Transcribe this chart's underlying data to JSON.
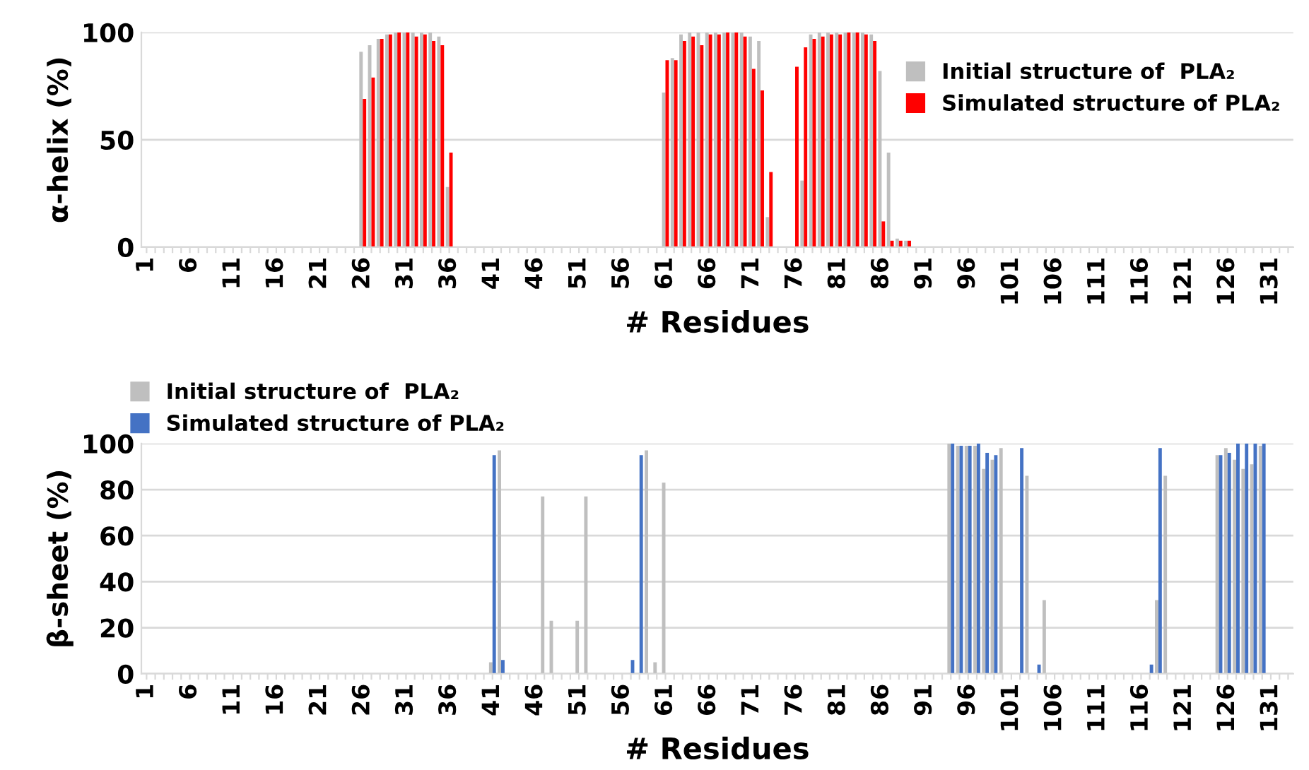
{
  "chart_data": [
    {
      "type": "bar",
      "xlabel": "# Residues",
      "ylabel": "α-helix (%)",
      "ylim": [
        0,
        100
      ],
      "yticks": [
        0,
        50,
        100
      ],
      "grid": "y",
      "legend": "top right",
      "categories": [
        "1",
        null,
        null,
        null,
        null,
        "6",
        null,
        null,
        null,
        null,
        "11",
        null,
        null,
        null,
        null,
        "16",
        null,
        null,
        null,
        null,
        "21",
        null,
        null,
        null,
        null,
        "26",
        null,
        null,
        null,
        null,
        "31",
        null,
        null,
        null,
        null,
        "36",
        null,
        null,
        null,
        null,
        "41",
        null,
        null,
        null,
        null,
        "46",
        null,
        null,
        null,
        null,
        "51",
        null,
        null,
        null,
        null,
        "56",
        null,
        null,
        null,
        null,
        "61",
        null,
        null,
        null,
        null,
        "66",
        null,
        null,
        null,
        null,
        "71",
        null,
        null,
        null,
        null,
        "76",
        null,
        null,
        null,
        null,
        "81",
        null,
        null,
        null,
        null,
        "86",
        null,
        null,
        null,
        null,
        "91",
        null,
        null,
        null,
        null,
        "96",
        null,
        null,
        null,
        null,
        "101",
        null,
        null,
        null,
        null,
        "106",
        null,
        null,
        null,
        null,
        "111",
        null,
        null,
        null,
        null,
        "116",
        null,
        null,
        null,
        null,
        "121",
        null,
        null,
        null,
        null,
        "126",
        null,
        null,
        null,
        null,
        "131",
        null,
        null
      ],
      "series": [
        {
          "name": "Initial structure of  PLA₂",
          "color": "#bfbfbf",
          "values": [
            0,
            0,
            0,
            0,
            0,
            0,
            0,
            0,
            0,
            0,
            0,
            0,
            0,
            0,
            0,
            0,
            0,
            0,
            0,
            0,
            0,
            0,
            0,
            0,
            0,
            91,
            94,
            97,
            99,
            100,
            100,
            100,
            100,
            100,
            98,
            28,
            0,
            0,
            0,
            0,
            0,
            0,
            0,
            0,
            0,
            0,
            0,
            0,
            0,
            0,
            0,
            0,
            0,
            0,
            0,
            0,
            0,
            0,
            0,
            0,
            72,
            88,
            99,
            100,
            100,
            100,
            100,
            100,
            100,
            100,
            98,
            96,
            14,
            0,
            0,
            0,
            31,
            99,
            100,
            100,
            100,
            100,
            100,
            100,
            99,
            82,
            44,
            4,
            3,
            0,
            0,
            0,
            0,
            0,
            0,
            0,
            0,
            0,
            0,
            0,
            0,
            0,
            0,
            0,
            0,
            0,
            0,
            0,
            0,
            0,
            0,
            0,
            0,
            0,
            0,
            0,
            0,
            0,
            0,
            0,
            0,
            0,
            0,
            0,
            0,
            0,
            0,
            0,
            0,
            0,
            0,
            0,
            0
          ]
        },
        {
          "name": "Simulated structure of PLA₂",
          "color": "#ff0000",
          "values": [
            0,
            0,
            0,
            0,
            0,
            0,
            0,
            0,
            0,
            0,
            0,
            0,
            0,
            0,
            0,
            0,
            0,
            0,
            0,
            0,
            0,
            0,
            0,
            0,
            0,
            69,
            79,
            97,
            99,
            100,
            100,
            98,
            99,
            96,
            94,
            44,
            0,
            0,
            0,
            0,
            0,
            0,
            0,
            0,
            0,
            0,
            0,
            0,
            0,
            0,
            0,
            0,
            0,
            0,
            0,
            0,
            0,
            0,
            0,
            0,
            87,
            87,
            96,
            98,
            94,
            99,
            99,
            100,
            100,
            98,
            83,
            73,
            35,
            0,
            0,
            84,
            93,
            97,
            98,
            99,
            99,
            100,
            100,
            99,
            96,
            12,
            3,
            3,
            3,
            0,
            0,
            0,
            0,
            0,
            0,
            0,
            0,
            0,
            0,
            0,
            0,
            0,
            0,
            0,
            0,
            0,
            0,
            0,
            0,
            0,
            0,
            0,
            0,
            0,
            0,
            0,
            0,
            0,
            0,
            0,
            0,
            0,
            0,
            0,
            0,
            0,
            0,
            0,
            0,
            0,
            0,
            0,
            0
          ]
        }
      ]
    },
    {
      "type": "bar",
      "xlabel": "# Residues",
      "ylabel": "β-sheet (%)",
      "ylim": [
        0,
        100
      ],
      "yticks": [
        0,
        20,
        40,
        60,
        80,
        100
      ],
      "grid": "y",
      "legend": "top left",
      "categories": [
        "1",
        null,
        null,
        null,
        null,
        "6",
        null,
        null,
        null,
        null,
        "11",
        null,
        null,
        null,
        null,
        "16",
        null,
        null,
        null,
        null,
        "21",
        null,
        null,
        null,
        null,
        "26",
        null,
        null,
        null,
        null,
        "31",
        null,
        null,
        null,
        null,
        "36",
        null,
        null,
        null,
        null,
        "41",
        null,
        null,
        null,
        null,
        "46",
        null,
        null,
        null,
        null,
        "51",
        null,
        null,
        null,
        null,
        "56",
        null,
        null,
        null,
        null,
        "61",
        null,
        null,
        null,
        null,
        "66",
        null,
        null,
        null,
        null,
        "71",
        null,
        null,
        null,
        null,
        "76",
        null,
        null,
        null,
        null,
        "81",
        null,
        null,
        null,
        null,
        "86",
        null,
        null,
        null,
        null,
        "91",
        null,
        null,
        null,
        null,
        "96",
        null,
        null,
        null,
        null,
        "101",
        null,
        null,
        null,
        null,
        "106",
        null,
        null,
        null,
        null,
        "111",
        null,
        null,
        null,
        null,
        "116",
        null,
        null,
        null,
        null,
        "121",
        null,
        null,
        null,
        null,
        "126",
        null,
        null,
        null,
        null,
        "131",
        null,
        null
      ],
      "series": [
        {
          "name": "Initial structure of  PLA₂",
          "color": "#bfbfbf",
          "values": [
            0,
            0,
            0,
            0,
            0,
            0,
            0,
            0,
            0,
            0,
            0,
            0,
            0,
            0,
            0,
            0,
            0,
            0,
            0,
            0,
            0,
            0,
            0,
            0,
            0,
            0,
            0,
            0,
            0,
            0,
            0,
            0,
            0,
            0,
            0,
            0,
            0,
            0,
            0,
            0,
            5,
            97,
            0,
            0,
            0,
            null,
            77,
            23,
            0,
            0,
            23,
            77,
            0,
            0,
            0,
            0,
            0,
            0,
            97,
            5,
            83,
            0,
            0,
            0,
            0,
            0,
            0,
            0,
            0,
            0,
            0,
            0,
            0,
            0,
            0,
            0,
            0,
            0,
            0,
            0,
            0,
            0,
            0,
            0,
            0,
            0,
            0,
            0,
            0,
            0,
            0,
            0,
            0,
            100,
            99,
            99,
            99,
            89,
            93,
            98,
            0,
            0,
            86,
            0,
            32,
            null,
            0,
            0,
            0,
            0,
            0,
            0,
            0,
            0,
            0,
            0,
            0,
            32,
            86,
            0,
            0,
            0,
            0,
            0,
            95,
            98,
            93,
            89,
            91,
            99,
            0,
            0,
            0
          ]
        },
        {
          "name": "Simulated structure of PLA₂",
          "color": "#4472c4",
          "values": [
            0,
            0,
            0,
            0,
            0,
            0,
            0,
            0,
            0,
            0,
            0,
            0,
            0,
            0,
            0,
            0,
            0,
            0,
            0,
            0,
            0,
            0,
            0,
            0,
            0,
            0,
            0,
            0,
            0,
            0,
            0,
            0,
            0,
            0,
            0,
            0,
            0,
            0,
            0,
            0,
            95,
            6,
            0,
            0,
            0,
            0,
            0,
            0,
            0,
            0,
            0,
            0,
            0,
            0,
            0,
            0,
            6,
            95,
            0,
            0,
            0,
            0,
            0,
            0,
            0,
            0,
            0,
            0,
            0,
            0,
            0,
            0,
            0,
            0,
            0,
            0,
            0,
            0,
            0,
            0,
            0,
            0,
            0,
            0,
            0,
            0,
            0,
            0,
            0,
            0,
            0,
            0,
            0,
            100,
            99,
            99,
            100,
            96,
            95,
            0,
            0,
            98,
            0,
            4,
            0,
            0,
            0,
            0,
            0,
            0,
            0,
            0,
            0,
            0,
            0,
            0,
            4,
            98,
            0,
            0,
            0,
            0,
            0,
            0,
            95,
            96,
            100,
            100,
            100,
            100,
            0,
            0,
            0
          ]
        }
      ]
    }
  ]
}
